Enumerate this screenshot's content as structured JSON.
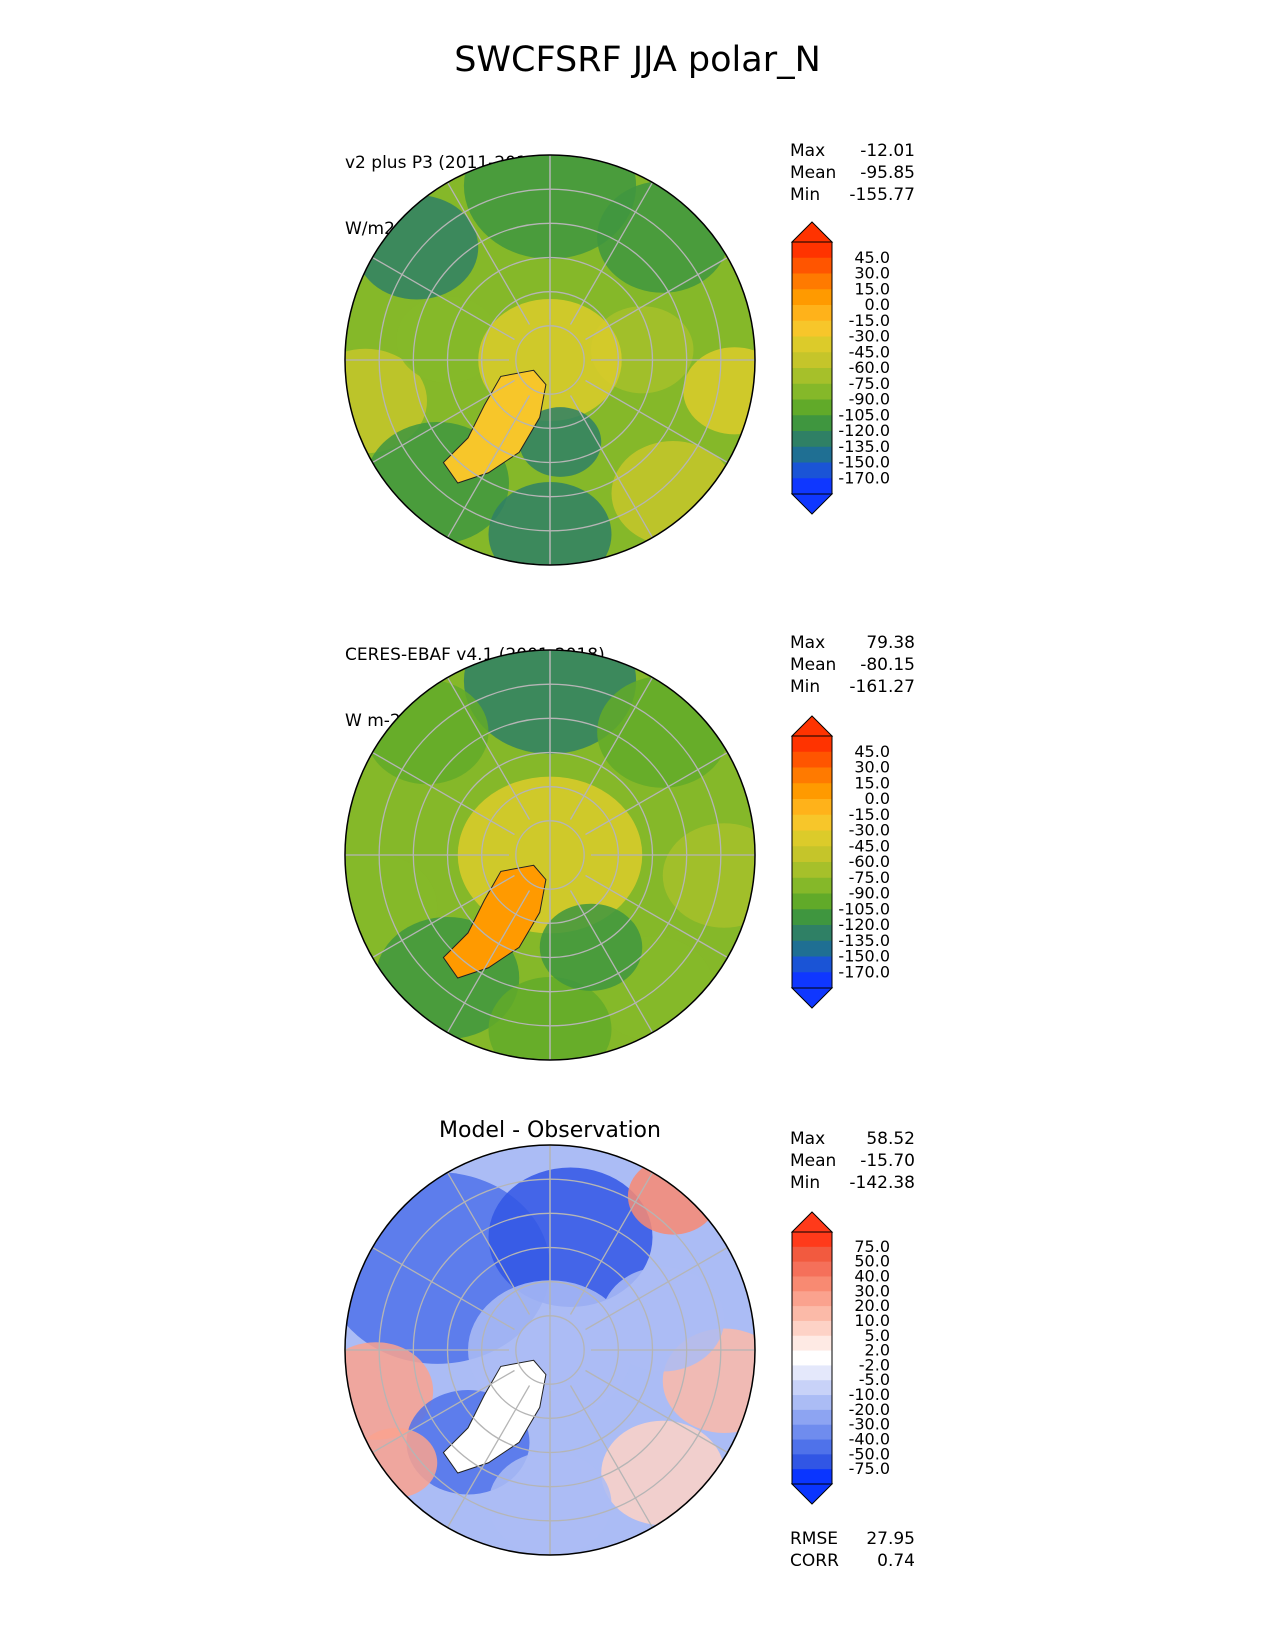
{
  "title": "SWCFSRF JJA polar_N",
  "panels": [
    {
      "label_line1": "v2 plus P3 (2011-2015)",
      "label_line2": "W/m2",
      "stats": [
        {
          "label": "Max",
          "value": "-12.01"
        },
        {
          "label": "Mean",
          "value": "-95.85"
        },
        {
          "label": "Min",
          "value": "-155.77"
        }
      ]
    },
    {
      "label_line1": "CERES-EBAF v4.1 (2001-2018)",
      "label_line2": "W m-2",
      "stats": [
        {
          "label": "Max",
          "value": "79.38"
        },
        {
          "label": "Mean",
          "value": "-80.15"
        },
        {
          "label": "Min",
          "value": "-161.27"
        }
      ]
    },
    {
      "title": "Model - Observation",
      "stats": [
        {
          "label": "Max",
          "value": "58.52"
        },
        {
          "label": "Mean",
          "value": "-15.70"
        },
        {
          "label": "Min",
          "value": "-142.38"
        }
      ],
      "metrics": [
        {
          "label": "RMSE",
          "value": "27.95"
        },
        {
          "label": "CORR",
          "value": "0.74"
        }
      ]
    }
  ],
  "chart_data": [
    {
      "type": "heatmap",
      "projection": "north polar stereographic",
      "title": "v2 plus P3 (2011-2015)",
      "units": "W/m2",
      "colorbar_ticks": [
        "45.0",
        "30.0",
        "15.0",
        "0.0",
        "-15.0",
        "-30.0",
        "-45.0",
        "-60.0",
        "-75.0",
        "-90.0",
        "-105.0",
        "-120.0",
        "-135.0",
        "-150.0",
        "-170.0"
      ],
      "colors": [
        "#ff3300",
        "#ff5500",
        "#ff7a00",
        "#ff9a00",
        "#ffb21a",
        "#f7c62a",
        "#dccb2a",
        "#c5c52a",
        "#a6c02a",
        "#85b829",
        "#61aa29",
        "#3f963f",
        "#2f8065",
        "#1f6f93",
        "#1a54d6",
        "#0f37ff"
      ],
      "max": -12.01,
      "mean": -95.85,
      "min": -155.77
    },
    {
      "type": "heatmap",
      "projection": "north polar stereographic",
      "title": "CERES-EBAF v4.1 (2001-2018)",
      "units": "W m-2",
      "colorbar_ticks": [
        "45.0",
        "30.0",
        "15.0",
        "0.0",
        "-15.0",
        "-30.0",
        "-45.0",
        "-60.0",
        "-75.0",
        "-90.0",
        "-105.0",
        "-120.0",
        "-135.0",
        "-150.0",
        "-170.0"
      ],
      "colors": [
        "#ff3300",
        "#ff5500",
        "#ff7a00",
        "#ff9a00",
        "#ffb21a",
        "#f7c62a",
        "#dccb2a",
        "#c5c52a",
        "#a6c02a",
        "#85b829",
        "#61aa29",
        "#3f963f",
        "#2f8065",
        "#1f6f93",
        "#1a54d6",
        "#0f37ff"
      ],
      "max": 79.38,
      "mean": -80.15,
      "min": -161.27
    },
    {
      "type": "heatmap",
      "projection": "north polar stereographic",
      "title": "Model - Observation",
      "colorbar_ticks": [
        "75.0",
        "50.0",
        "40.0",
        "30.0",
        "20.0",
        "10.0",
        "5.0",
        "2.0",
        "-2.0",
        "-5.0",
        "-10.0",
        "-20.0",
        "-30.0",
        "-40.0",
        "-50.0",
        "-75.0"
      ],
      "colors": [
        "#ff3a1a",
        "#f25a3f",
        "#f5705a",
        "#f88a72",
        "#faa28e",
        "#fbbaa8",
        "#fdd2c6",
        "#feeae4",
        "#ffffff",
        "#e4e8fb",
        "#c8d2f8",
        "#abbcf5",
        "#8da4f2",
        "#6f8cee",
        "#4f72ea",
        "#3156e5",
        "#0a35ff"
      ],
      "max": 58.52,
      "mean": -15.7,
      "min": -142.38,
      "rmse": 27.95,
      "corr": 0.74
    }
  ]
}
